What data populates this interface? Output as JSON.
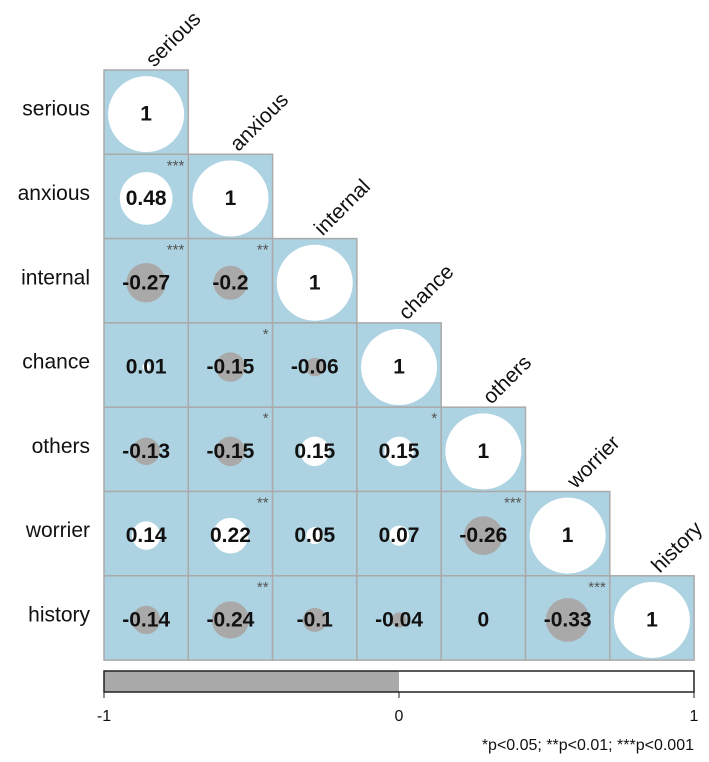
{
  "chart_data": {
    "type": "correlation",
    "variables": [
      "serious",
      "anxious",
      "internal",
      "chance",
      "others",
      "worrier",
      "history"
    ],
    "matrix": [
      [
        1
      ],
      [
        0.48,
        1
      ],
      [
        -0.27,
        -0.2,
        1
      ],
      [
        0.01,
        -0.15,
        -0.06,
        1
      ],
      [
        -0.13,
        -0.15,
        0.15,
        0.15,
        1
      ],
      [
        0.14,
        0.22,
        0.05,
        0.07,
        -0.26,
        1
      ],
      [
        -0.14,
        -0.24,
        -0.1,
        -0.04,
        0,
        -0.33,
        1
      ]
    ],
    "stars": [
      [
        null
      ],
      [
        "***",
        null
      ],
      [
        "***",
        "**",
        null
      ],
      [
        null,
        "*",
        null,
        null
      ],
      [
        null,
        "*",
        null,
        "*",
        null
      ],
      [
        null,
        "**",
        null,
        null,
        "***",
        null
      ],
      [
        null,
        "**",
        null,
        null,
        null,
        "***",
        null
      ]
    ],
    "clim": [
      -1,
      1
    ],
    "cticks": [
      -1,
      0,
      1
    ],
    "cell_color": "#add3e2",
    "positive_color": "#ffffff",
    "negative_color": "#a9a9a9",
    "note": "*p<0.05; **p<0.01; ***p<0.001"
  }
}
